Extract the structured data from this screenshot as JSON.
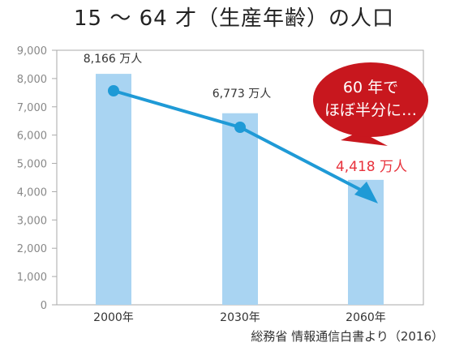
{
  "chart_data": {
    "type": "bar",
    "title": "15 ～ 64 才（生産年齢）の人口",
    "categories": [
      "2000年",
      "2030年",
      "2060年"
    ],
    "values": [
      8166,
      6773,
      4418
    ],
    "data_labels": [
      "8,166 万人",
      "6,773 万人",
      "4,418 万人"
    ],
    "ylim": [
      0,
      9000
    ],
    "y_ticks": [
      "0",
      "1,000",
      "2,000",
      "3,000",
      "4,000",
      "5,000",
      "6,000",
      "7,000",
      "8,000",
      "9,000"
    ],
    "grid": false,
    "callout": "60 年で\nほぼ半分に…",
    "source": "総務省 情報通信白書より（2016）"
  },
  "colors": {
    "bar": "#a9d4f2",
    "trend": "#1f9ad6",
    "highlight": "#e8323c",
    "bubble": "#c8171e",
    "axis": "#aaaaaa"
  }
}
